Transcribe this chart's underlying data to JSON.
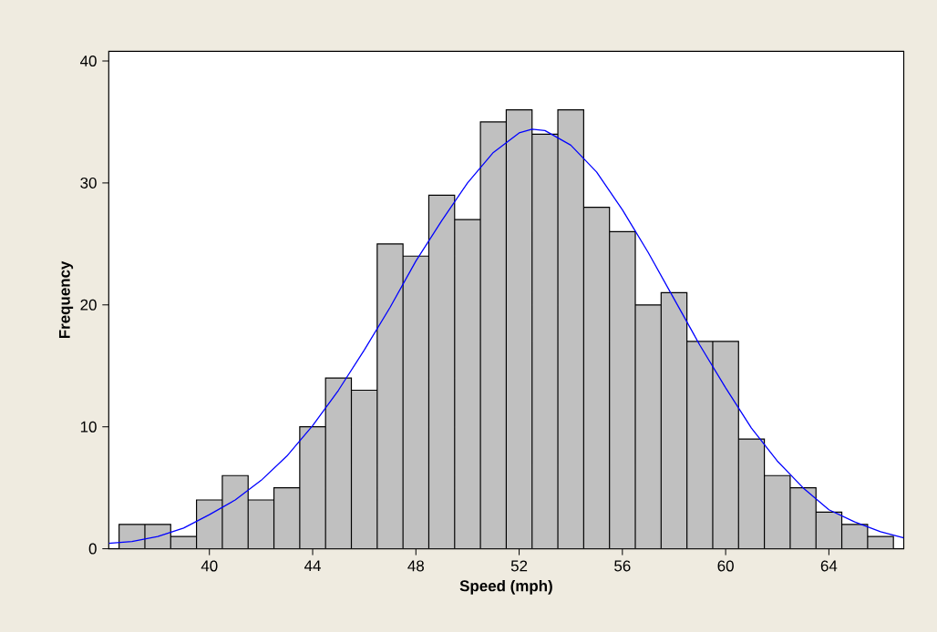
{
  "chart_data": {
    "type": "histogram",
    "xlabel": "Speed (mph)",
    "ylabel": "Frequency",
    "bins": [
      36.5,
      37.5,
      38.5,
      39.5,
      40.5,
      41.5,
      42.5,
      43.5,
      44.5,
      45.5,
      46.5,
      47.5,
      48.5,
      49.5,
      50.5,
      51.5,
      52.5,
      53.5,
      54.5,
      55.5,
      56.5,
      57.5,
      58.5,
      59.5,
      60.5,
      61.5,
      62.5,
      63.5,
      64.5,
      65.5,
      66.5
    ],
    "values": [
      2,
      2,
      1,
      4,
      6,
      4,
      5,
      10,
      14,
      13,
      25,
      24,
      29,
      27,
      35,
      36,
      34,
      36,
      28,
      26,
      20,
      21,
      17,
      17,
      9,
      6,
      5,
      3,
      2,
      1
    ],
    "color": "#c0c0c0",
    "series": [
      {
        "type": "line",
        "color": "#0000ff",
        "x": [
          36.1,
          37,
          38,
          39,
          40,
          41,
          42,
          43,
          44,
          45,
          46,
          47,
          48,
          49,
          50,
          51,
          52,
          52.5,
          53,
          54,
          55,
          56,
          57,
          58,
          59,
          60,
          61,
          62,
          63,
          64,
          65,
          66,
          66.9
        ],
        "values": [
          0.45,
          0.6,
          1.0,
          1.7,
          2.8,
          4.0,
          5.6,
          7.6,
          10.1,
          13.0,
          16.3,
          19.8,
          23.6,
          26.9,
          30.0,
          32.5,
          34.1,
          34.4,
          34.3,
          33.1,
          30.9,
          27.8,
          24.3,
          20.5,
          16.7,
          13.2,
          9.9,
          7.2,
          5.0,
          3.2,
          2.2,
          1.4,
          0.9
        ]
      }
    ],
    "xlim": [
      36.1,
      66.9
    ],
    "ylim": [
      0,
      40.8
    ],
    "xticks": [
      40,
      44,
      48,
      52,
      56,
      60,
      64
    ],
    "yticks": [
      0,
      10,
      20,
      30,
      40
    ]
  }
}
